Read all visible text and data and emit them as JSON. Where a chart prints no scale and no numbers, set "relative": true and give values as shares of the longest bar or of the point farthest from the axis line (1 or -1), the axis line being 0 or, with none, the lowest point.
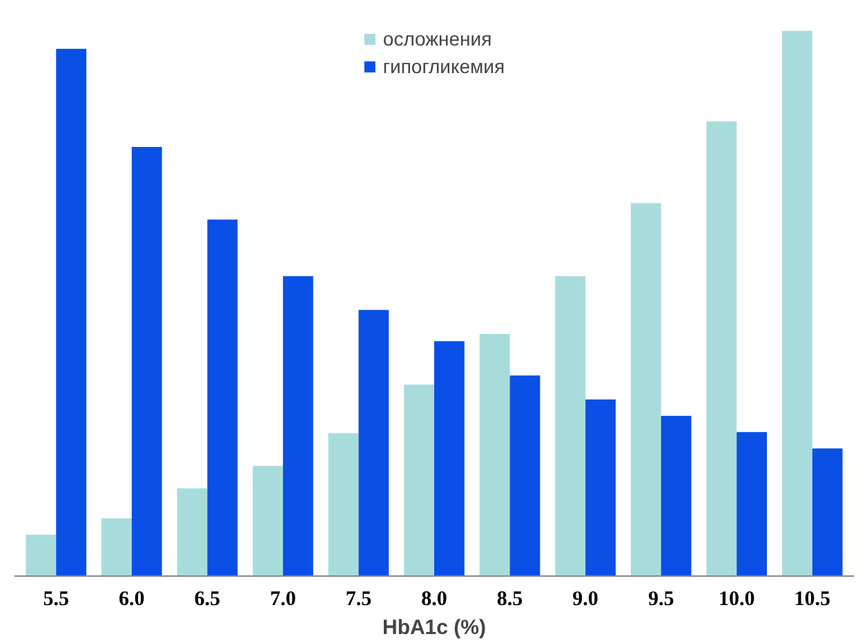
{
  "chart_data": {
    "type": "bar",
    "relative": true,
    "xlabel": "HbA1c (%)",
    "categories": [
      "5.5",
      "6.0",
      "6.5",
      "7.0",
      "7.5",
      "8.0",
      "8.5",
      "9.0",
      "9.5",
      "10.0",
      "10.5"
    ],
    "series": [
      {
        "name": "осложнения",
        "color": "#a8dcdc",
        "values": [
          0.076,
          0.106,
          0.161,
          0.202,
          0.262,
          0.351,
          0.444,
          0.55,
          0.684,
          0.834,
          1
        ]
      },
      {
        "name": "гипогликемия",
        "color": "#0a50e6",
        "values": [
          0.967,
          0.787,
          0.654,
          0.55,
          0.488,
          0.431,
          0.368,
          0.324,
          0.294,
          0.264,
          0.234
        ]
      }
    ],
    "legend": "top",
    "grid": false
  }
}
